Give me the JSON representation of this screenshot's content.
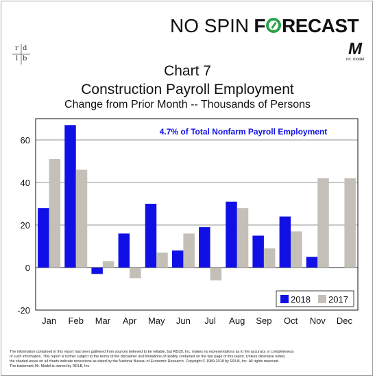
{
  "brand": {
    "first": "NO SPIN",
    "f": "F",
    "rest": "RECAST",
    "colors": {
      "text": "#111111",
      "o_ring": "#2aa24a"
    }
  },
  "logo_left": {
    "r": "r",
    "d": "d",
    "l": "l",
    "b": "b"
  },
  "logo_right": {
    "mark": "M",
    "tag": "mr. model"
  },
  "chart_data": {
    "type": "bar",
    "title": "Chart 7",
    "subtitle": "Construction Payroll Employment",
    "subtitle2": "Change from Prior Month -- Thousands of Persons",
    "annotation": "4.7% of Total Nonfarm Payroll Employment",
    "categories": [
      "Jan",
      "Feb",
      "Mar",
      "Apr",
      "May",
      "Jun",
      "Jul",
      "Aug",
      "Sep",
      "Oct",
      "Nov",
      "Dec"
    ],
    "series": [
      {
        "name": "2018",
        "color": "#1010e6",
        "values": [
          28,
          67,
          -3,
          16,
          30,
          8,
          19,
          31,
          15,
          24,
          5,
          null
        ]
      },
      {
        "name": "2017",
        "color": "#c4c0b8",
        "values": [
          51,
          46,
          3,
          -5,
          7,
          16,
          -6,
          28,
          9,
          17,
          42,
          42
        ]
      }
    ],
    "ylim": [
      -20,
      70
    ],
    "yticks": [
      -20,
      0,
      20,
      40,
      60
    ],
    "grid": true,
    "legend": "bottom-right"
  },
  "footer": {
    "line1": "The information contained in this report has been gathered from sources believed to be reliable, but RDLB, Inc. makes no representations as to the accuracy or completeness",
    "line2": "of such information. This report is further subject to the terms of the disclaimer and limitations of liability contained on the last page of this report. Unless otherwise noted,",
    "line3": "the shaded areas on all charts indicate recessions as dated by the National Bureau of Economic Research. Copyright © 1989-2018 by RDLB, Inc. All rights reserved.",
    "line4": "The trademark Mr. Model is owned by RDLB, Inc."
  }
}
